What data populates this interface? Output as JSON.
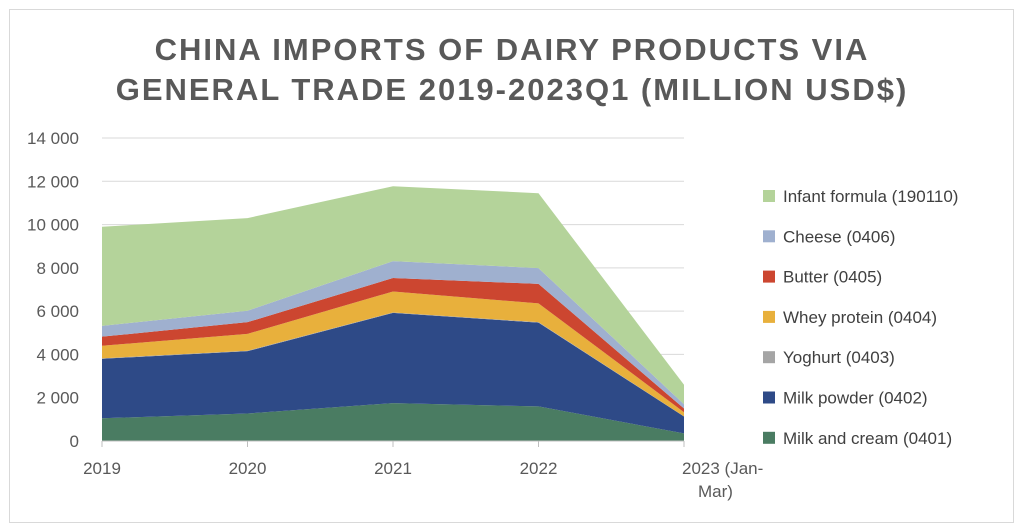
{
  "chart_data": {
    "type": "area",
    "stacked": true,
    "title_lines": [
      "CHINA IMPORTS OF DAIRY PRODUCTS VIA",
      "GENERAL TRADE 2019-2023Q1 (MILLION USD$)"
    ],
    "categories": [
      "2019",
      "2020",
      "2021",
      "2022",
      "2023 (Jan-Mar)"
    ],
    "x_tick_lines": [
      [
        "2019"
      ],
      [
        "2020"
      ],
      [
        "2021"
      ],
      [
        "2022"
      ],
      [
        "2023 (Jan-",
        "Mar)"
      ]
    ],
    "ylim": [
      0,
      14000
    ],
    "y_ticks": [
      0,
      2000,
      4000,
      6000,
      8000,
      10000,
      12000,
      14000
    ],
    "y_tick_labels": [
      "0",
      "2 000",
      "4 000",
      "6 000",
      "8 000",
      "10 000",
      "12 000",
      "14 000"
    ],
    "grid": true,
    "legend_position": "right",
    "series": [
      {
        "name": "Milk and cream (0401)",
        "color": "#4a7c62",
        "values": [
          1050,
          1270,
          1750,
          1600,
          350
        ]
      },
      {
        "name": "Milk powder (0402)",
        "color": "#2e4a87",
        "values": [
          2750,
          2880,
          4170,
          3870,
          780
        ]
      },
      {
        "name": "Yoghurt (0403)",
        "color": "#a5a5a5",
        "values": [
          20,
          20,
          20,
          20,
          10
        ]
      },
      {
        "name": "Whey protein (0404)",
        "color": "#e8b03c",
        "values": [
          580,
          780,
          970,
          870,
          190
        ]
      },
      {
        "name": "Butter (0405)",
        "color": "#cc4630",
        "values": [
          420,
          540,
          620,
          900,
          170
        ]
      },
      {
        "name": "Cheese (0406)",
        "color": "#9fb0cf",
        "values": [
          500,
          530,
          780,
          730,
          200
        ]
      },
      {
        "name": "Infant formula (190110)",
        "color": "#b4d39a",
        "values": [
          4580,
          4280,
          3460,
          3460,
          900
        ]
      }
    ]
  }
}
